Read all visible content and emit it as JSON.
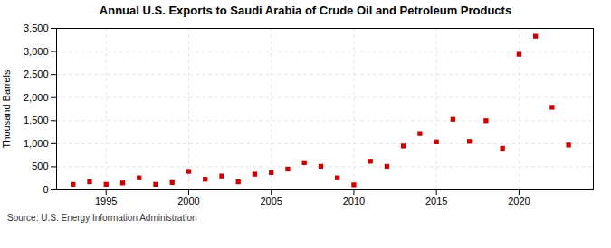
{
  "chart_data": {
    "type": "scatter",
    "title": "Annual U.S. Exports to Saudi Arabia of Crude Oil and Petroleum Products",
    "ylabel": "Thousand Barrels",
    "annotations": [
      "Source: U.S. Energy Information Administration"
    ],
    "x": [
      1993,
      1994,
      1995,
      1996,
      1997,
      1998,
      1999,
      2000,
      2001,
      2002,
      2003,
      2004,
      2005,
      2006,
      2007,
      2008,
      2009,
      2010,
      2011,
      2012,
      2013,
      2014,
      2015,
      2016,
      2017,
      2018,
      2019,
      2020,
      2021,
      2022,
      2023
    ],
    "values": [
      120,
      175,
      120,
      150,
      260,
      120,
      160,
      400,
      230,
      300,
      175,
      340,
      375,
      450,
      590,
      510,
      260,
      110,
      620,
      510,
      950,
      1220,
      1040,
      1530,
      1050,
      1500,
      900,
      2940,
      3330,
      1790,
      970
    ],
    "color": "#cc0000",
    "marker": "square",
    "grid": true,
    "xlim": [
      1992,
      2024.5
    ],
    "xticks": [
      1995,
      2000,
      2005,
      2010,
      2015,
      2020
    ],
    "ylim": [
      0,
      3500
    ],
    "yticks": [
      0,
      500,
      {
        "value": 1000,
        "label": "1,000"
      },
      {
        "value": 1500,
        "label": "1,500"
      },
      {
        "value": 2000,
        "label": "2,000"
      },
      {
        "value": 2500,
        "label": "2,500"
      },
      {
        "value": 3000,
        "label": "3,000"
      },
      {
        "value": 3500,
        "label": "3,500"
      }
    ]
  }
}
